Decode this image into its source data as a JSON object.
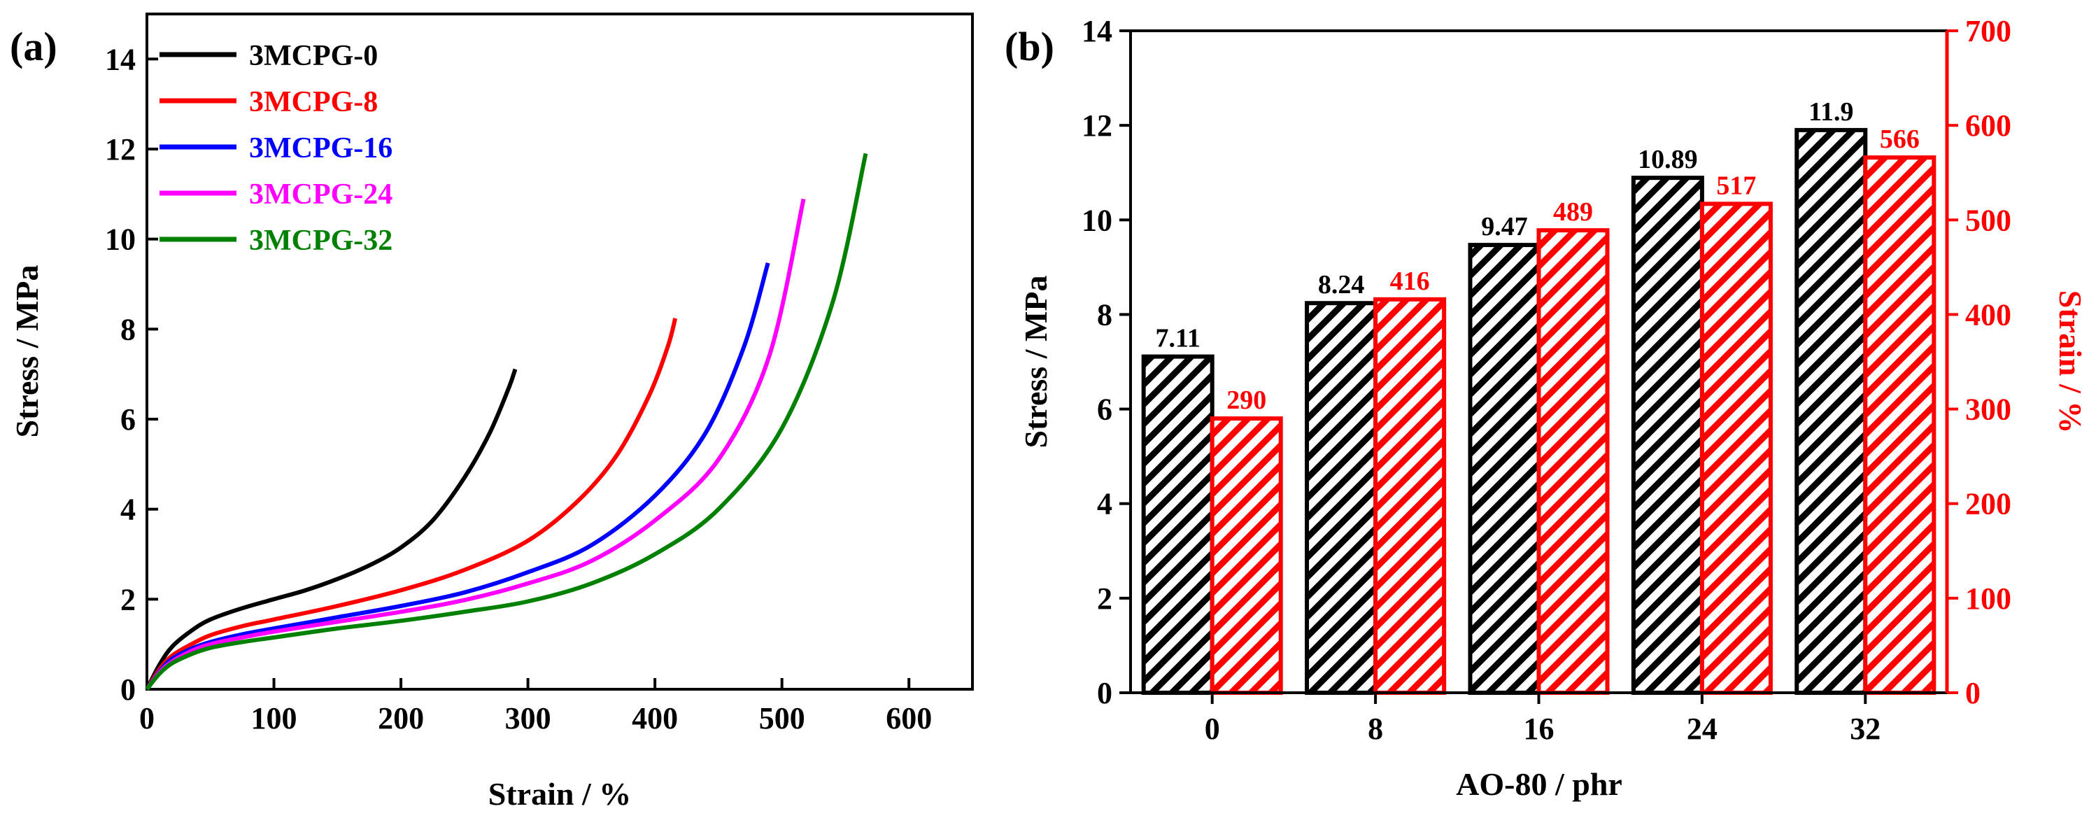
{
  "chart_data": [
    {
      "panel": "(a)",
      "type": "line",
      "xlabel": "Strain / %",
      "ylabel": "Stress / MPa",
      "xlim": [
        0,
        650
      ],
      "ylim": [
        0,
        15
      ],
      "xticks": [
        0,
        100,
        200,
        300,
        400,
        500,
        600
      ],
      "yticks": [
        0,
        2,
        4,
        6,
        8,
        10,
        12,
        14
      ],
      "legend_position": "top-left",
      "series": [
        {
          "name": "3MCPG-0",
          "color": "#000000",
          "x": [
            0,
            10,
            20,
            35,
            50,
            75,
            100,
            125,
            150,
            175,
            200,
            225,
            250,
            270,
            285,
            290
          ],
          "y": [
            0,
            0.55,
            0.95,
            1.3,
            1.55,
            1.8,
            2.0,
            2.2,
            2.45,
            2.75,
            3.15,
            3.75,
            4.7,
            5.7,
            6.7,
            7.11
          ]
        },
        {
          "name": "3MCPG-8",
          "color": "#ff0000",
          "x": [
            0,
            10,
            20,
            35,
            50,
            75,
            100,
            150,
            200,
            250,
            300,
            340,
            370,
            395,
            410,
            416
          ],
          "y": [
            0,
            0.45,
            0.75,
            1.0,
            1.2,
            1.4,
            1.55,
            1.85,
            2.2,
            2.65,
            3.3,
            4.2,
            5.2,
            6.5,
            7.6,
            8.24
          ]
        },
        {
          "name": "3MCPG-16",
          "color": "#0000ff",
          "x": [
            0,
            10,
            20,
            35,
            50,
            75,
            100,
            150,
            200,
            250,
            300,
            350,
            400,
            440,
            470,
            489
          ],
          "y": [
            0,
            0.4,
            0.68,
            0.9,
            1.05,
            1.22,
            1.35,
            1.6,
            1.85,
            2.15,
            2.6,
            3.2,
            4.3,
            5.7,
            7.6,
            9.47
          ]
        },
        {
          "name": "3MCPG-24",
          "color": "#ff00ff",
          "x": [
            0,
            10,
            20,
            35,
            50,
            75,
            100,
            150,
            200,
            250,
            300,
            350,
            400,
            450,
            490,
            517
          ],
          "y": [
            0,
            0.38,
            0.62,
            0.85,
            1.0,
            1.15,
            1.28,
            1.5,
            1.72,
            1.98,
            2.35,
            2.85,
            3.75,
            5.1,
            7.4,
            10.89
          ]
        },
        {
          "name": "3MCPG-32",
          "color": "#008000",
          "x": [
            0,
            10,
            20,
            35,
            50,
            75,
            100,
            150,
            200,
            250,
            300,
            350,
            400,
            450,
            500,
            540,
            566
          ],
          "y": [
            0,
            0.35,
            0.58,
            0.78,
            0.92,
            1.05,
            1.15,
            1.35,
            1.52,
            1.72,
            1.95,
            2.35,
            3.0,
            4.0,
            5.8,
            8.6,
            11.9
          ]
        }
      ]
    },
    {
      "panel": "(b)",
      "type": "bar",
      "xlabel": "AO-80 / phr",
      "ylabel": "Stress / MPa",
      "ylabel_right": "Strain / %",
      "categories": [
        "0",
        "8",
        "16",
        "24",
        "32"
      ],
      "ylim": [
        0,
        14
      ],
      "ylim_right": [
        0,
        700
      ],
      "yticks": [
        0,
        2,
        4,
        6,
        8,
        10,
        12,
        14
      ],
      "yticks_right": [
        0,
        100,
        200,
        300,
        400,
        500,
        600,
        700
      ],
      "series": [
        {
          "name": "Stress",
          "axis": "left",
          "color": "#000000",
          "values": [
            7.11,
            8.24,
            9.47,
            10.89,
            11.9
          ],
          "labels": [
            "7.11",
            "8.24",
            "9.47",
            "10.89",
            "11.9"
          ]
        },
        {
          "name": "Strain",
          "axis": "right",
          "color": "#ff0000",
          "values": [
            290,
            416,
            489,
            517,
            566
          ],
          "labels": [
            "290",
            "416",
            "489",
            "517",
            "566"
          ]
        }
      ]
    }
  ]
}
